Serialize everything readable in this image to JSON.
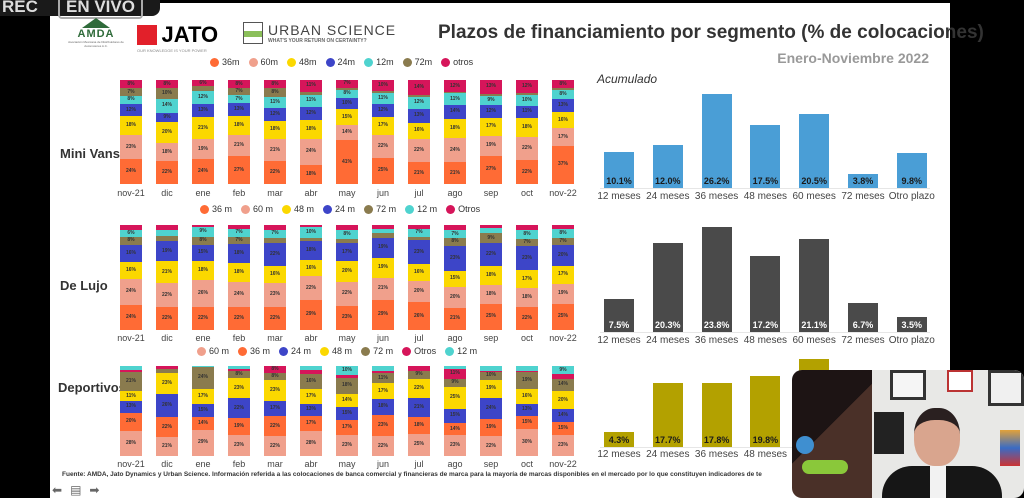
{
  "overlay": {
    "rec": "REC",
    "live": "EN VIVO"
  },
  "logos": {
    "amda": "AMDA",
    "amda_sub": "Asociación Mexicana de Distribuidores de Automotores A.C.",
    "jato": "JATO",
    "jato_sub": "OUR KNOWLEDGE IS YOUR POWER",
    "urban": "URBAN SCIENCE",
    "urban_sub": "WHAT'S YOUR RETURN ON CERTAINTY?"
  },
  "header": {
    "title": "Plazos de financiamiento por segmento (% de colocaciones)",
    "subtitle": "Enero-Noviembre 2022",
    "acumulado": "Acumulado"
  },
  "footer": "Fuente: AMDA, Jato Dynamics y Urban Science. Información referida a las colocaciones de banca comercial y financieras de marca para la mayoría de marcas disponibles en el mercado por lo que constituyen indicadores de te",
  "colors": {
    "36m": "#ff6b35",
    "60m": "#f0a08c",
    "48m": "#fbd800",
    "24m": "#3d45c8",
    "12m": "#4fd3cf",
    "72m": "#8a7b4e",
    "otros": "#d6155a",
    "acc_minivans": "#4a9ed6",
    "acc_lujo": "#4a4a4a",
    "acc_deportivos": "#b3a100"
  },
  "chart_data": [
    {
      "type": "bar",
      "stacked": true,
      "segment": "Mini Vans",
      "categories": [
        "nov-21",
        "dic",
        "ene",
        "feb",
        "mar",
        "abr",
        "may",
        "jun",
        "jul",
        "ago",
        "sep",
        "oct",
        "nov-22"
      ],
      "legend": [
        "36m",
        "60m",
        "48m",
        "24m",
        "12m",
        "72m",
        "otros"
      ],
      "series": [
        {
          "name": "36m",
          "key": "36m",
          "values": [
            24,
            22,
            24,
            27,
            22,
            18,
            41,
            25,
            21,
            21,
            27,
            22,
            37
          ]
        },
        {
          "name": "60m",
          "key": "60m",
          "values": [
            23,
            18,
            19,
            21,
            21,
            24,
            14,
            22,
            22,
            24,
            19,
            22,
            17
          ]
        },
        {
          "name": "48m",
          "key": "48m",
          "values": [
            18,
            20,
            21,
            18,
            18,
            18,
            15,
            17,
            16,
            18,
            17,
            18,
            16
          ]
        },
        {
          "name": "24m",
          "key": "24m",
          "values": [
            12,
            9,
            13,
            13,
            12,
            12,
            10,
            12,
            13,
            14,
            12,
            11,
            13
          ]
        },
        {
          "name": "12m",
          "key": "12m",
          "values": [
            8,
            14,
            12,
            7,
            11,
            11,
            8,
            11,
            12,
            11,
            9,
            10,
            8
          ]
        },
        {
          "name": "72m",
          "key": "72m",
          "values": [
            7,
            10,
            5,
            7,
            8,
            3,
            2,
            2,
            2,
            1,
            2,
            2,
            2
          ]
        },
        {
          "name": "otros",
          "key": "otros",
          "values": [
            8,
            8,
            6,
            8,
            8,
            11,
            7,
            10,
            14,
            12,
            13,
            12,
            8
          ]
        }
      ]
    },
    {
      "type": "bar",
      "stacked": true,
      "segment": "De Lujo",
      "categories": [
        "nov-21",
        "dic",
        "ene",
        "feb",
        "mar",
        "abr",
        "may",
        "jun",
        "jul",
        "ago",
        "sep",
        "oct",
        "nov-22"
      ],
      "legend": [
        "36 m",
        "60 m",
        "48 m",
        "24 m",
        "72 m",
        "12 m",
        "Otros"
      ],
      "series": [
        {
          "name": "36 m",
          "key": "36m",
          "values": [
            24,
            22,
            22,
            22,
            22,
            29,
            23,
            29,
            26,
            21,
            25,
            22,
            25
          ]
        },
        {
          "name": "60 m",
          "key": "60m",
          "values": [
            24,
            22,
            26,
            24,
            23,
            22,
            22,
            21,
            20,
            20,
            18,
            18,
            19
          ]
        },
        {
          "name": "48 m",
          "key": "48m",
          "values": [
            16,
            21,
            18,
            18,
            16,
            16,
            20,
            19,
            16,
            15,
            18,
            17,
            17
          ]
        },
        {
          "name": "24 m",
          "key": "24m",
          "values": [
            16,
            19,
            15,
            18,
            22,
            18,
            17,
            19,
            23,
            23,
            22,
            23,
            20
          ]
        },
        {
          "name": "72 m",
          "key": "72m",
          "values": [
            8,
            5,
            8,
            7,
            5,
            3,
            4,
            4,
            3,
            8,
            9,
            7,
            7
          ]
        },
        {
          "name": "12 m",
          "key": "12m",
          "values": [
            6,
            5,
            9,
            7,
            7,
            10,
            8,
            4,
            7,
            7,
            5,
            8,
            8
          ]
        },
        {
          "name": "Otros",
          "key": "otros",
          "values": [
            5,
            5,
            2,
            4,
            5,
            2,
            5,
            4,
            4,
            5,
            3,
            5,
            4
          ]
        }
      ]
    },
    {
      "type": "bar",
      "stacked": true,
      "segment": "Deportivos",
      "categories": [
        "nov-21",
        "dic",
        "ene",
        "feb",
        "mar",
        "abr",
        "may",
        "jun",
        "jul",
        "ago",
        "sep",
        "oct",
        "nov-22"
      ],
      "legend": [
        "60 m",
        "36 m",
        "24 m",
        "48 m",
        "72 m",
        "Otros",
        "12 m"
      ],
      "series": [
        {
          "name": "60 m",
          "key": "60m",
          "values": [
            28,
            21,
            29,
            23,
            22,
            28,
            23,
            22,
            25,
            23,
            22,
            30,
            23
          ]
        },
        {
          "name": "36 m",
          "key": "36m",
          "values": [
            20,
            22,
            14,
            19,
            22,
            17,
            17,
            23,
            18,
            14,
            19,
            15,
            15
          ]
        },
        {
          "name": "24 m",
          "key": "24m",
          "values": [
            13,
            26,
            15,
            22,
            17,
            13,
            15,
            18,
            21,
            15,
            24,
            13,
            14
          ]
        },
        {
          "name": "48 m",
          "key": "48m",
          "values": [
            11,
            23,
            17,
            23,
            23,
            17,
            14,
            17,
            22,
            25,
            19,
            16,
            20
          ]
        },
        {
          "name": "72 m",
          "key": "72m",
          "values": [
            21,
            5,
            24,
            8,
            8,
            16,
            18,
            11,
            9,
            9,
            10,
            19,
            14
          ]
        },
        {
          "name": "Otros",
          "key": "otros",
          "values": [
            3,
            3,
            0,
            2,
            8,
            5,
            3,
            3,
            5,
            11,
            1,
            2,
            5
          ]
        },
        {
          "name": "12 m",
          "key": "12m",
          "values": [
            4,
            0,
            1,
            3,
            0,
            4,
            10,
            5,
            0,
            3,
            5,
            5,
            9
          ]
        }
      ]
    },
    {
      "type": "bar",
      "title": "Acumulado",
      "segment": "Mini Vans",
      "categories": [
        "12 meses",
        "24 meses",
        "36 meses",
        "48 meses",
        "60 meses",
        "72 meses",
        "Otro plazo"
      ],
      "values": [
        10.1,
        12.0,
        26.2,
        17.5,
        20.5,
        3.8,
        9.8
      ],
      "color_key": "acc_minivans"
    },
    {
      "type": "bar",
      "segment": "De Lujo",
      "categories": [
        "12 meses",
        "24 meses",
        "36 meses",
        "48 meses",
        "60 meses",
        "72 meses",
        "Otro plazo"
      ],
      "values": [
        7.5,
        20.3,
        23.8,
        17.2,
        21.1,
        6.7,
        3.5
      ],
      "color_key": "acc_lujo"
    },
    {
      "type": "bar",
      "segment": "Deportivos",
      "categories": [
        "12 meses",
        "24 meses",
        "36 meses",
        "48 meses"
      ],
      "values": [
        4.3,
        17.7,
        17.8,
        19.8
      ],
      "color_key": "acc_deportivos"
    }
  ]
}
